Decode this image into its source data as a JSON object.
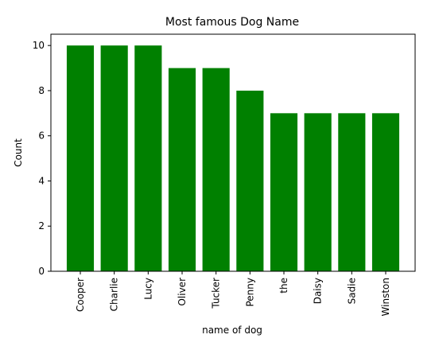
{
  "chart_data": {
    "type": "bar",
    "title": "Most famous Dog Name",
    "xlabel": "name of dog",
    "ylabel": "Count",
    "categories": [
      "Cooper",
      "Charlie",
      "Lucy",
      "Oliver",
      "Tucker",
      "Penny",
      "the",
      "Daisy",
      "Sadie",
      "Winston"
    ],
    "values": [
      10,
      10,
      10,
      9,
      9,
      8,
      7,
      7,
      7,
      7
    ],
    "ylim": [
      0,
      10.5
    ],
    "yticks": [
      0,
      2,
      4,
      6,
      8,
      10
    ],
    "grid": false,
    "legend": "none",
    "bar_color": "#008000"
  }
}
